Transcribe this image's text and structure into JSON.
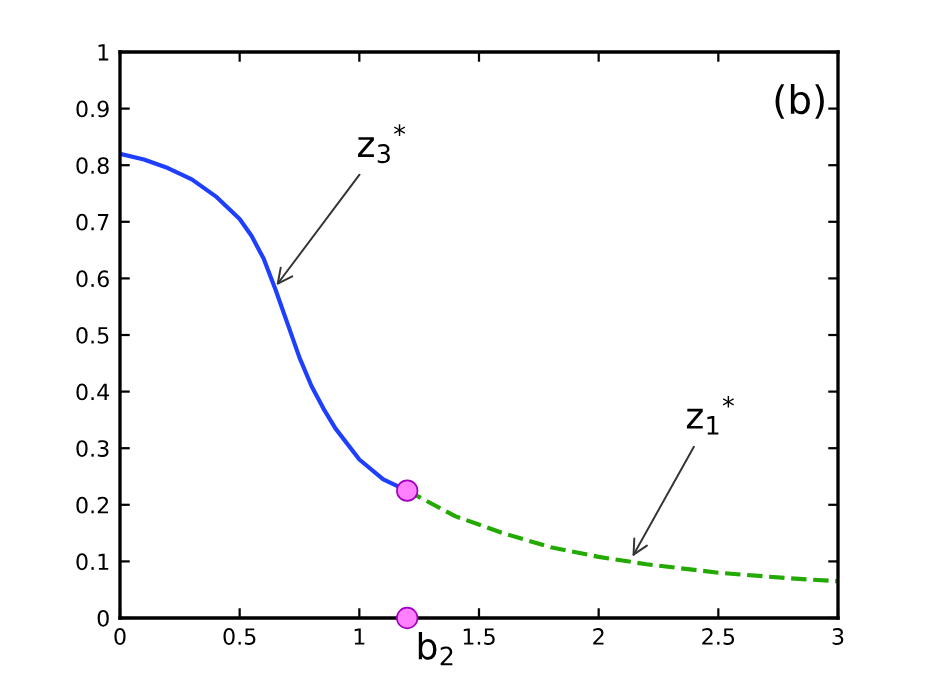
{
  "chart_data": {
    "type": "line",
    "xlim": [
      0,
      3
    ],
    "ylim": [
      0,
      1
    ],
    "xticks": [
      0,
      0.5,
      1,
      1.5,
      2,
      2.5,
      3
    ],
    "yticks": [
      0,
      0.1,
      0.2,
      0.3,
      0.4,
      0.5,
      0.6,
      0.7,
      0.8,
      0.9,
      1
    ],
    "grid": false,
    "legend": false,
    "series": [
      {
        "color": "#1f3fff",
        "line_style": "solid",
        "marker": "none",
        "x": [
          0,
          0.1,
          0.2,
          0.3,
          0.4,
          0.5,
          0.55,
          0.6,
          0.65,
          0.7,
          0.75,
          0.8,
          0.85,
          0.9,
          1.0,
          1.1,
          1.2
        ],
        "values": [
          0.82,
          0.81,
          0.795,
          0.775,
          0.745,
          0.705,
          0.675,
          0.635,
          0.58,
          0.52,
          0.46,
          0.41,
          0.37,
          0.335,
          0.28,
          0.245,
          0.225
        ]
      },
      {
        "color": "#22aa00",
        "line_style": "dashed",
        "marker": "none",
        "x": [
          1.2,
          1.4,
          1.6,
          1.8,
          2.0,
          2.2,
          2.5,
          2.8,
          3.0
        ],
        "values": [
          0.225,
          0.18,
          0.15,
          0.125,
          0.108,
          0.095,
          0.08,
          0.07,
          0.065
        ]
      },
      {
        "type": "scatter",
        "color": "#ff80ff",
        "marker": "circle",
        "x": [
          1.2,
          1.2
        ],
        "values": [
          0.225,
          0
        ]
      }
    ],
    "annotations": [
      {
        "text": "z$_{3}$$^{*}$",
        "x": 0.64,
        "y": 0.58
      },
      {
        "text": "z$_{1}$$^{*}$",
        "x": 2.13,
        "y": 0.1
      },
      {
        "text": "b$_{2}$",
        "x": 1.2,
        "y": 0
      },
      "(b)"
    ]
  }
}
